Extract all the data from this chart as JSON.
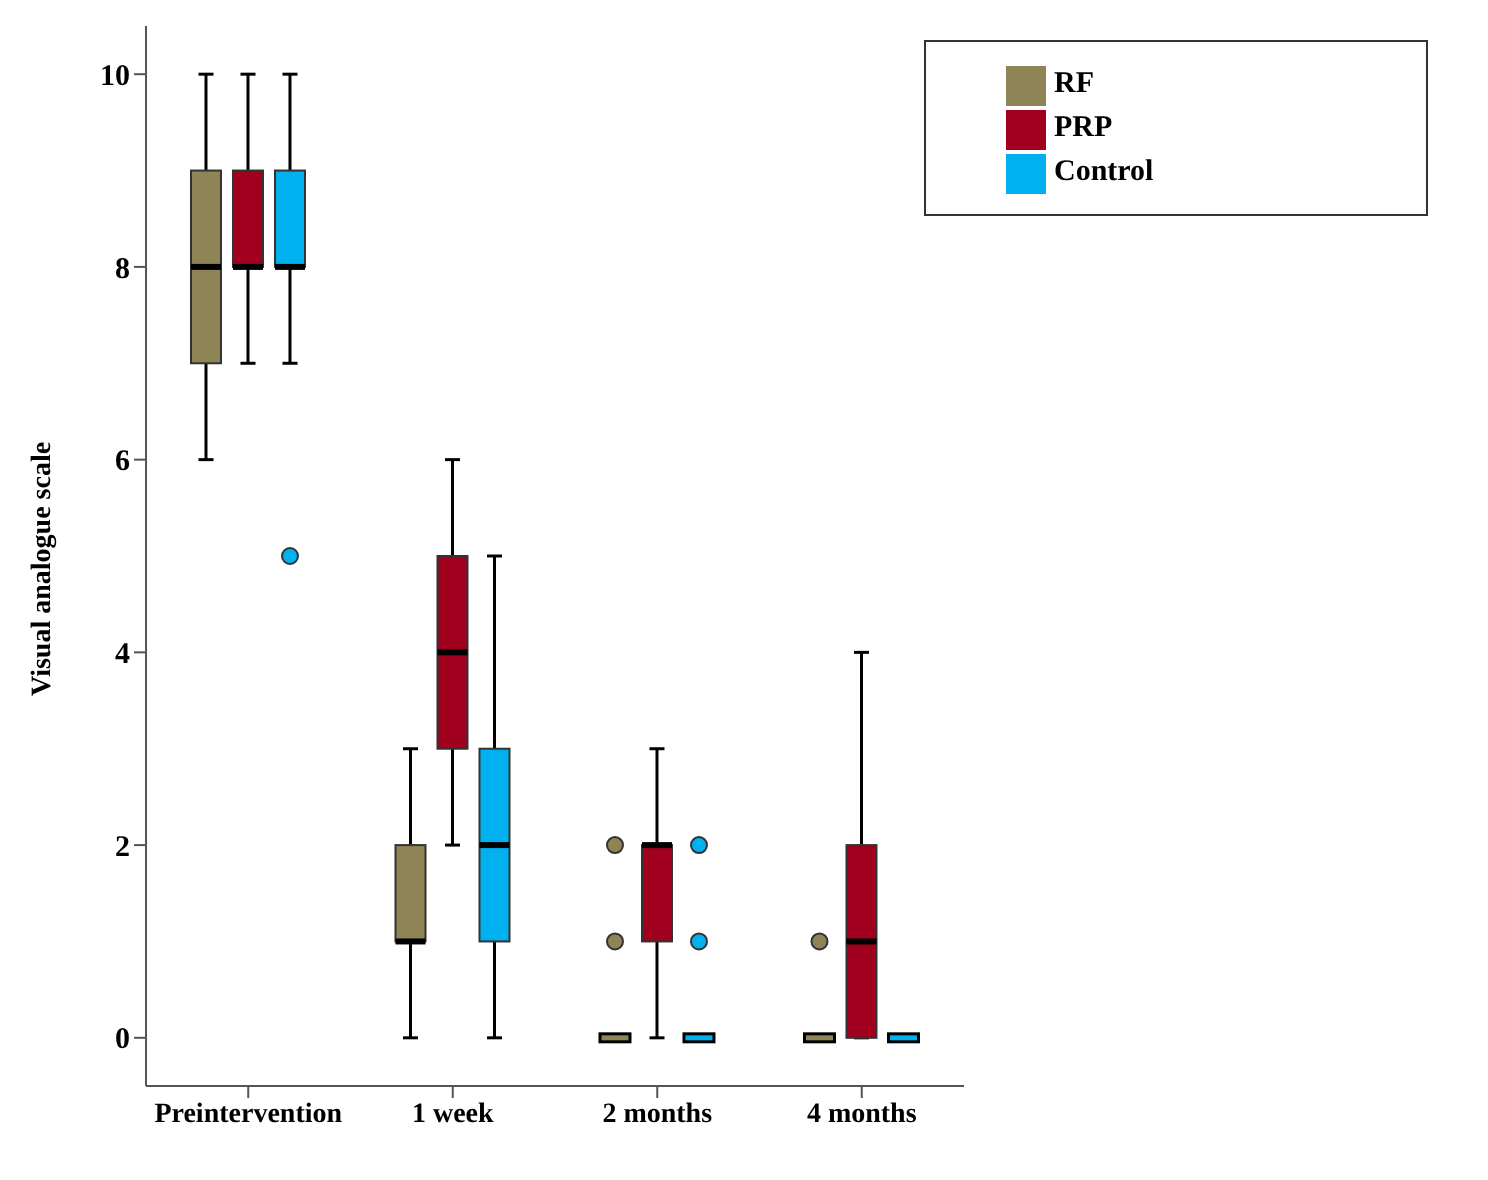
{
  "chart_data": {
    "type": "box",
    "ylabel": "Visual analogue scale",
    "categories": [
      "Preintervention",
      "1 week",
      "2 months",
      "4 months"
    ],
    "ylim": [
      -0.5,
      10.5
    ],
    "yticks": [
      0,
      2,
      4,
      6,
      8,
      10
    ],
    "legend": "top right",
    "series": [
      {
        "name": "RF",
        "color": "#8f8455",
        "boxes": [
          {
            "low": 6,
            "q1": 7,
            "median": 8,
            "q3": 9,
            "high": 10
          },
          {
            "low": 0,
            "q1": 1,
            "median": 1,
            "q3": 2,
            "high": 3
          },
          {
            "low": 0,
            "q1": 0,
            "median": 0,
            "q3": 0,
            "high": 0,
            "outliers": [
              1,
              2
            ]
          },
          {
            "low": 0,
            "q1": 0,
            "median": 0,
            "q3": 0,
            "high": 0,
            "outliers": [
              1
            ]
          }
        ]
      },
      {
        "name": "PRP",
        "color": "#a0001e",
        "boxes": [
          {
            "low": 7,
            "q1": 8,
            "median": 8,
            "q3": 9,
            "high": 10
          },
          {
            "low": 2,
            "q1": 3,
            "median": 4,
            "q3": 5,
            "high": 6
          },
          {
            "low": 0,
            "q1": 1,
            "median": 2,
            "q3": 2,
            "high": 3
          },
          {
            "low": 0,
            "q1": 0,
            "median": 1,
            "q3": 2,
            "high": 4
          }
        ]
      },
      {
        "name": "Control",
        "color": "#00b0ef",
        "boxes": [
          {
            "low": 7,
            "q1": 8,
            "median": 8,
            "q3": 9,
            "high": 10,
            "outliers": [
              5
            ]
          },
          {
            "low": 0,
            "q1": 1,
            "median": 2,
            "q3": 3,
            "high": 5
          },
          {
            "low": 0,
            "q1": 0,
            "median": 0,
            "q3": 0,
            "high": 0,
            "outliers": [
              1,
              2
            ]
          },
          {
            "low": 0,
            "q1": 0,
            "median": 0,
            "q3": 0,
            "high": 0
          }
        ]
      }
    ]
  }
}
